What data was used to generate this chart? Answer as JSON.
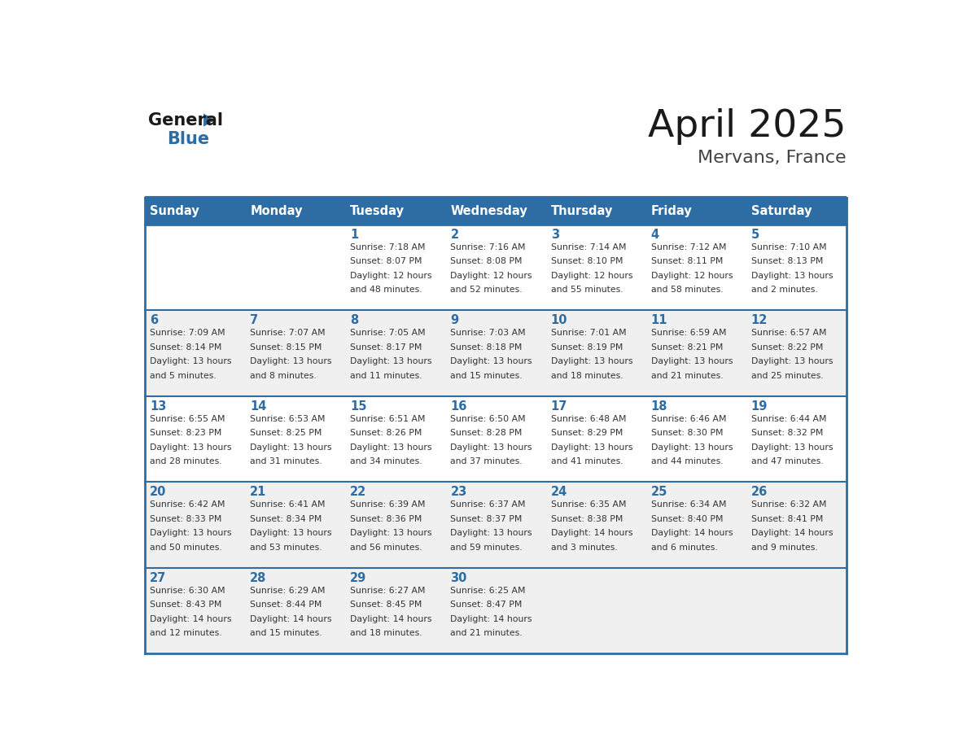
{
  "title": "April 2025",
  "subtitle": "Mervans, France",
  "header_bg": "#2E6DA4",
  "header_text_color": "#FFFFFF",
  "cell_bg_white": "#FFFFFF",
  "cell_bg_gray": "#F0F0F0",
  "day_number_color": "#2E6DA4",
  "text_color": "#333333",
  "border_color": "#2E6DA4",
  "logo_black": "#1a1a1a",
  "logo_blue": "#2E6DA4",
  "title_color": "#1a1a1a",
  "subtitle_color": "#444444",
  "days_of_week": [
    "Sunday",
    "Monday",
    "Tuesday",
    "Wednesday",
    "Thursday",
    "Friday",
    "Saturday"
  ],
  "weeks": [
    [
      {
        "day": "",
        "info": ""
      },
      {
        "day": "",
        "info": ""
      },
      {
        "day": "1",
        "info": "Sunrise: 7:18 AM\nSunset: 8:07 PM\nDaylight: 12 hours\nand 48 minutes."
      },
      {
        "day": "2",
        "info": "Sunrise: 7:16 AM\nSunset: 8:08 PM\nDaylight: 12 hours\nand 52 minutes."
      },
      {
        "day": "3",
        "info": "Sunrise: 7:14 AM\nSunset: 8:10 PM\nDaylight: 12 hours\nand 55 minutes."
      },
      {
        "day": "4",
        "info": "Sunrise: 7:12 AM\nSunset: 8:11 PM\nDaylight: 12 hours\nand 58 minutes."
      },
      {
        "day": "5",
        "info": "Sunrise: 7:10 AM\nSunset: 8:13 PM\nDaylight: 13 hours\nand 2 minutes."
      }
    ],
    [
      {
        "day": "6",
        "info": "Sunrise: 7:09 AM\nSunset: 8:14 PM\nDaylight: 13 hours\nand 5 minutes."
      },
      {
        "day": "7",
        "info": "Sunrise: 7:07 AM\nSunset: 8:15 PM\nDaylight: 13 hours\nand 8 minutes."
      },
      {
        "day": "8",
        "info": "Sunrise: 7:05 AM\nSunset: 8:17 PM\nDaylight: 13 hours\nand 11 minutes."
      },
      {
        "day": "9",
        "info": "Sunrise: 7:03 AM\nSunset: 8:18 PM\nDaylight: 13 hours\nand 15 minutes."
      },
      {
        "day": "10",
        "info": "Sunrise: 7:01 AM\nSunset: 8:19 PM\nDaylight: 13 hours\nand 18 minutes."
      },
      {
        "day": "11",
        "info": "Sunrise: 6:59 AM\nSunset: 8:21 PM\nDaylight: 13 hours\nand 21 minutes."
      },
      {
        "day": "12",
        "info": "Sunrise: 6:57 AM\nSunset: 8:22 PM\nDaylight: 13 hours\nand 25 minutes."
      }
    ],
    [
      {
        "day": "13",
        "info": "Sunrise: 6:55 AM\nSunset: 8:23 PM\nDaylight: 13 hours\nand 28 minutes."
      },
      {
        "day": "14",
        "info": "Sunrise: 6:53 AM\nSunset: 8:25 PM\nDaylight: 13 hours\nand 31 minutes."
      },
      {
        "day": "15",
        "info": "Sunrise: 6:51 AM\nSunset: 8:26 PM\nDaylight: 13 hours\nand 34 minutes."
      },
      {
        "day": "16",
        "info": "Sunrise: 6:50 AM\nSunset: 8:28 PM\nDaylight: 13 hours\nand 37 minutes."
      },
      {
        "day": "17",
        "info": "Sunrise: 6:48 AM\nSunset: 8:29 PM\nDaylight: 13 hours\nand 41 minutes."
      },
      {
        "day": "18",
        "info": "Sunrise: 6:46 AM\nSunset: 8:30 PM\nDaylight: 13 hours\nand 44 minutes."
      },
      {
        "day": "19",
        "info": "Sunrise: 6:44 AM\nSunset: 8:32 PM\nDaylight: 13 hours\nand 47 minutes."
      }
    ],
    [
      {
        "day": "20",
        "info": "Sunrise: 6:42 AM\nSunset: 8:33 PM\nDaylight: 13 hours\nand 50 minutes."
      },
      {
        "day": "21",
        "info": "Sunrise: 6:41 AM\nSunset: 8:34 PM\nDaylight: 13 hours\nand 53 minutes."
      },
      {
        "day": "22",
        "info": "Sunrise: 6:39 AM\nSunset: 8:36 PM\nDaylight: 13 hours\nand 56 minutes."
      },
      {
        "day": "23",
        "info": "Sunrise: 6:37 AM\nSunset: 8:37 PM\nDaylight: 13 hours\nand 59 minutes."
      },
      {
        "day": "24",
        "info": "Sunrise: 6:35 AM\nSunset: 8:38 PM\nDaylight: 14 hours\nand 3 minutes."
      },
      {
        "day": "25",
        "info": "Sunrise: 6:34 AM\nSunset: 8:40 PM\nDaylight: 14 hours\nand 6 minutes."
      },
      {
        "day": "26",
        "info": "Sunrise: 6:32 AM\nSunset: 8:41 PM\nDaylight: 14 hours\nand 9 minutes."
      }
    ],
    [
      {
        "day": "27",
        "info": "Sunrise: 6:30 AM\nSunset: 8:43 PM\nDaylight: 14 hours\nand 12 minutes."
      },
      {
        "day": "28",
        "info": "Sunrise: 6:29 AM\nSunset: 8:44 PM\nDaylight: 14 hours\nand 15 minutes."
      },
      {
        "day": "29",
        "info": "Sunrise: 6:27 AM\nSunset: 8:45 PM\nDaylight: 14 hours\nand 18 minutes."
      },
      {
        "day": "30",
        "info": "Sunrise: 6:25 AM\nSunset: 8:47 PM\nDaylight: 14 hours\nand 21 minutes."
      },
      {
        "day": "",
        "info": ""
      },
      {
        "day": "",
        "info": ""
      },
      {
        "day": "",
        "info": ""
      }
    ]
  ]
}
